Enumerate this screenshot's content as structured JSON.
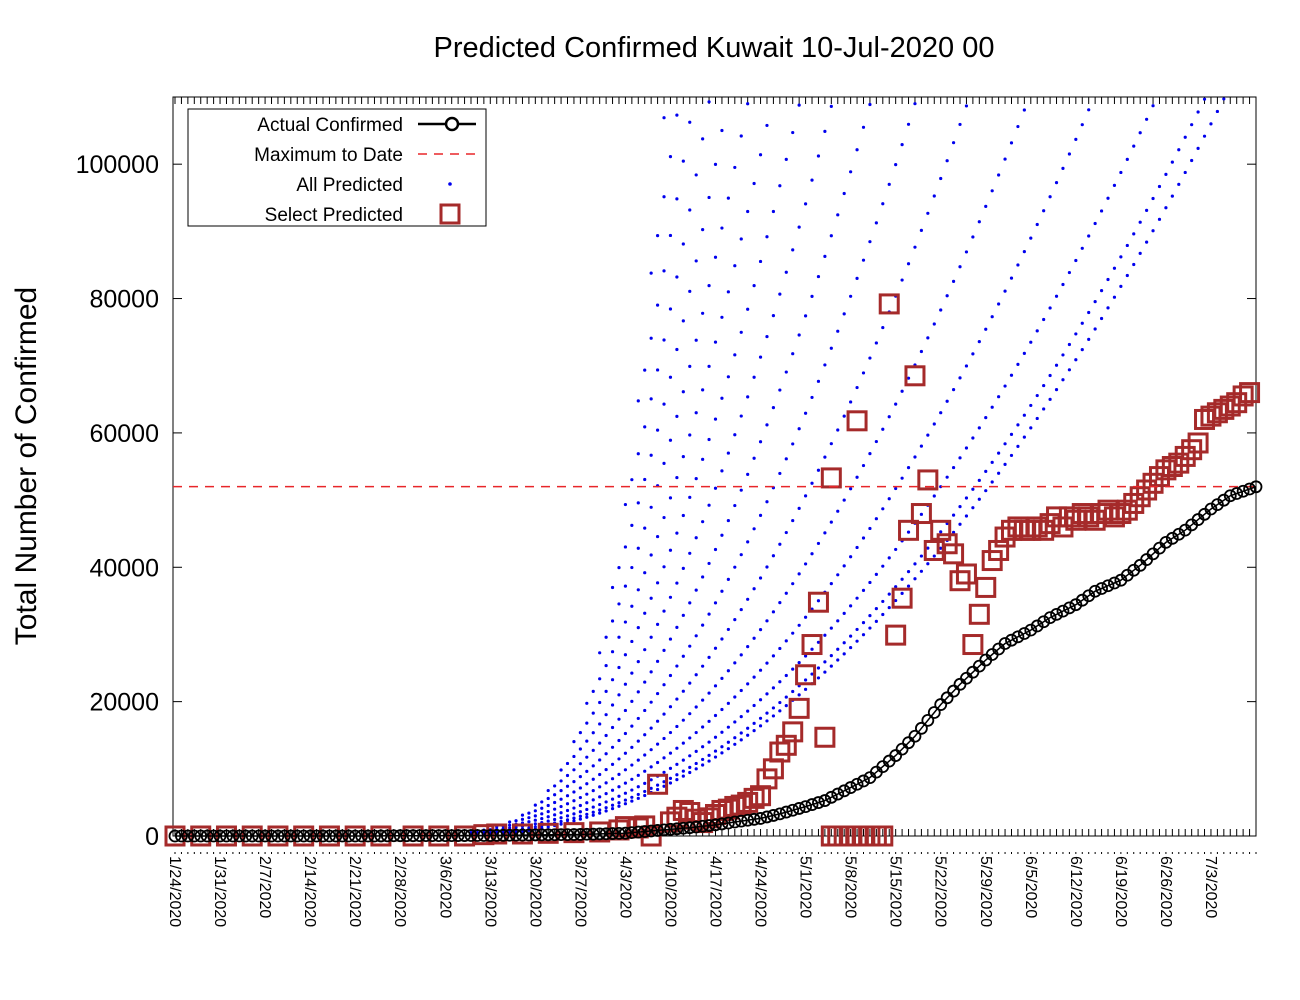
{
  "chart_data": {
    "type": "scatter",
    "title": "Predicted Confirmed Kuwait 10-Jul-2020 00",
    "xlabel": "",
    "ylabel": "Total Number of Confirmed",
    "x_start": "2020-01-24",
    "x_end": "2020-07-10",
    "ylim": [
      0,
      110000
    ],
    "yticks": [
      0,
      20000,
      40000,
      60000,
      80000,
      100000
    ],
    "xtick_labels": [
      "1/24/2020",
      "1/31/2020",
      "2/7/2020",
      "2/14/2020",
      "2/21/2020",
      "2/28/2020",
      "3/6/2020",
      "3/13/2020",
      "3/20/2020",
      "3/27/2020",
      "4/3/2020",
      "4/10/2020",
      "4/17/2020",
      "4/24/2020",
      "5/1/2020",
      "5/8/2020",
      "5/15/2020",
      "5/22/2020",
      "5/29/2020",
      "6/5/2020",
      "6/12/2020",
      "6/19/2020",
      "6/26/2020",
      "7/3/2020"
    ],
    "legend_position": "top-left",
    "grid": false,
    "colors": {
      "actual": "#000000",
      "maximum": "#e8262a",
      "all_predicted": "#0000ee",
      "select_predicted": "#a52a2a"
    },
    "series": [
      {
        "name": "Actual Confirmed",
        "style": "line-circle",
        "points": [
          [
            "1/24/2020",
            0
          ],
          [
            "2/24/2020",
            0
          ],
          [
            "2/28/2020",
            45
          ],
          [
            "3/6/2020",
            58
          ],
          [
            "3/13/2020",
            80
          ],
          [
            "3/20/2020",
            160
          ],
          [
            "3/27/2020",
            230
          ],
          [
            "4/3/2020",
            420
          ],
          [
            "4/6/2020",
            665
          ],
          [
            "4/10/2020",
            993
          ],
          [
            "4/13/2020",
            1234
          ],
          [
            "4/17/2020",
            1658
          ],
          [
            "4/20/2020",
            2080
          ],
          [
            "4/24/2020",
            2614
          ],
          [
            "4/27/2020",
            3288
          ],
          [
            "5/1/2020",
            4377
          ],
          [
            "5/4/2020",
            5278
          ],
          [
            "5/8/2020",
            7208
          ],
          [
            "5/11/2020",
            8688
          ],
          [
            "5/15/2020",
            11975
          ],
          [
            "5/18/2020",
            14850
          ],
          [
            "5/22/2020",
            19564
          ],
          [
            "5/25/2020",
            22575
          ],
          [
            "5/29/2020",
            26192
          ],
          [
            "6/1/2020",
            28649
          ],
          [
            "6/5/2020",
            30644
          ],
          [
            "6/8/2020",
            32510
          ],
          [
            "6/12/2020",
            34432
          ],
          [
            "6/15/2020",
            36431
          ],
          [
            "6/19/2020",
            38074
          ],
          [
            "6/22/2020",
            40291
          ],
          [
            "6/26/2020",
            43703
          ],
          [
            "6/29/2020",
            45524
          ],
          [
            "7/3/2020",
            48672
          ],
          [
            "7/6/2020",
            50644
          ],
          [
            "7/10/2020",
            51980
          ]
        ]
      },
      {
        "name": "Maximum to Date",
        "style": "dashed",
        "value": 52000
      },
      {
        "name": "All Predicted",
        "style": "dots",
        "points": []
      },
      {
        "name": "Select Predicted",
        "style": "squares",
        "points": [
          [
            "1/24/2020",
            0
          ],
          [
            "1/28/2020",
            0
          ],
          [
            "2/1/2020",
            0
          ],
          [
            "2/5/2020",
            0
          ],
          [
            "2/9/2020",
            0
          ],
          [
            "2/13/2020",
            0
          ],
          [
            "2/17/2020",
            0
          ],
          [
            "2/21/2020",
            0
          ],
          [
            "2/25/2020",
            0
          ],
          [
            "3/1/2020",
            0
          ],
          [
            "3/5/2020",
            0
          ],
          [
            "3/9/2020",
            0
          ],
          [
            "3/12/2020",
            200
          ],
          [
            "3/14/2020",
            300
          ],
          [
            "3/18/2020",
            300
          ],
          [
            "3/22/2020",
            400
          ],
          [
            "3/26/2020",
            500
          ],
          [
            "3/30/2020",
            600
          ],
          [
            "4/2/2020",
            900
          ],
          [
            "4/3/2020",
            1400
          ],
          [
            "4/5/2020",
            1200
          ],
          [
            "4/6/2020",
            1500
          ],
          [
            "4/7/2020",
            0
          ],
          [
            "4/8/2020",
            7700
          ],
          [
            "4/10/2020",
            2100
          ],
          [
            "4/11/2020",
            2800
          ],
          [
            "4/12/2020",
            3800
          ],
          [
            "4/13/2020",
            3500
          ],
          [
            "4/14/2020",
            2500
          ],
          [
            "4/15/2020",
            2000
          ],
          [
            "4/16/2020",
            2700
          ],
          [
            "4/17/2020",
            3200
          ],
          [
            "4/18/2020",
            3800
          ],
          [
            "4/19/2020",
            4000
          ],
          [
            "4/20/2020",
            4400
          ],
          [
            "4/21/2020",
            4600
          ],
          [
            "4/22/2020",
            5000
          ],
          [
            "4/23/2020",
            5600
          ],
          [
            "4/24/2020",
            6000
          ],
          [
            "4/25/2020",
            8500
          ],
          [
            "4/26/2020",
            10000
          ],
          [
            "4/27/2020",
            12500
          ],
          [
            "4/28/2020",
            13500
          ],
          [
            "4/29/2020",
            15500
          ],
          [
            "4/30/2020",
            19000
          ],
          [
            "5/1/2020",
            24000
          ],
          [
            "5/2/2020",
            28500
          ],
          [
            "5/3/2020",
            34800
          ],
          [
            "5/4/2020",
            14700
          ],
          [
            "5/5/2020",
            53300
          ],
          [
            "5/5/2020",
            0
          ],
          [
            "5/6/2020",
            0
          ],
          [
            "5/7/2020",
            0
          ],
          [
            "5/8/2020",
            0
          ],
          [
            "5/9/2020",
            61800
          ],
          [
            "5/9/2020",
            0
          ],
          [
            "5/10/2020",
            0
          ],
          [
            "5/11/2020",
            0
          ],
          [
            "5/12/2020",
            0
          ],
          [
            "5/13/2020",
            0
          ],
          [
            "5/14/2020",
            79200
          ],
          [
            "5/15/2020",
            29900
          ],
          [
            "5/16/2020",
            35400
          ],
          [
            "5/17/2020",
            45500
          ],
          [
            "5/18/2020",
            68500
          ],
          [
            "5/19/2020",
            48000
          ],
          [
            "5/20/2020",
            53000
          ],
          [
            "5/21/2020",
            42500
          ],
          [
            "5/22/2020",
            45500
          ],
          [
            "5/23/2020",
            43500
          ],
          [
            "5/24/2020",
            42000
          ],
          [
            "5/25/2020",
            38000
          ],
          [
            "5/26/2020",
            39000
          ],
          [
            "5/27/2020",
            28500
          ],
          [
            "5/28/2020",
            33000
          ],
          [
            "5/29/2020",
            37000
          ],
          [
            "5/30/2020",
            41000
          ],
          [
            "5/31/2020",
            42500
          ],
          [
            "6/1/2020",
            44500
          ],
          [
            "6/2/2020",
            45500
          ],
          [
            "6/3/2020",
            46000
          ],
          [
            "6/4/2020",
            45500
          ],
          [
            "6/5/2020",
            45500
          ],
          [
            "6/6/2020",
            46000
          ],
          [
            "6/7/2020",
            45500
          ],
          [
            "6/8/2020",
            46500
          ],
          [
            "6/9/2020",
            47500
          ],
          [
            "6/10/2020",
            46000
          ],
          [
            "6/11/2020",
            47500
          ],
          [
            "6/12/2020",
            47000
          ],
          [
            "6/13/2020",
            48000
          ],
          [
            "6/14/2020",
            47500
          ],
          [
            "6/15/2020",
            47000
          ],
          [
            "6/16/2020",
            48000
          ],
          [
            "6/17/2020",
            48500
          ],
          [
            "6/18/2020",
            47500
          ],
          [
            "6/19/2020",
            48000
          ],
          [
            "6/20/2020",
            48500
          ],
          [
            "6/21/2020",
            49500
          ],
          [
            "6/22/2020",
            50500
          ],
          [
            "6/23/2020",
            51500
          ],
          [
            "6/24/2020",
            52500
          ],
          [
            "6/25/2020",
            53500
          ],
          [
            "6/26/2020",
            54500
          ],
          [
            "6/27/2020",
            55000
          ],
          [
            "6/28/2020",
            55500
          ],
          [
            "6/29/2020",
            56500
          ],
          [
            "6/30/2020",
            57500
          ],
          [
            "7/1/2020",
            58500
          ],
          [
            "7/2/2020",
            62000
          ],
          [
            "7/3/2020",
            62500
          ],
          [
            "7/4/2020",
            63000
          ],
          [
            "7/5/2020",
            63500
          ],
          [
            "7/6/2020",
            64000
          ],
          [
            "7/7/2020",
            64500
          ],
          [
            "7/8/2020",
            65500
          ],
          [
            "7/9/2020",
            66000
          ]
        ]
      }
    ]
  }
}
